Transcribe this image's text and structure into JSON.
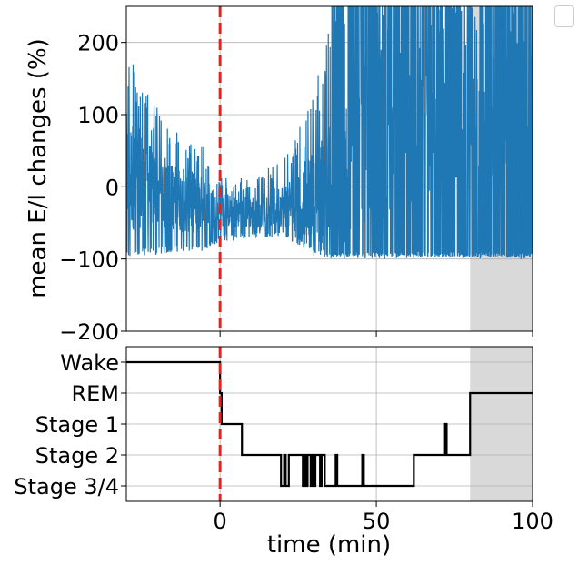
{
  "chart_data": [
    {
      "type": "line",
      "panel": "top",
      "ylabel": "mean E/I changes (%)",
      "xlim": [
        -30,
        100
      ],
      "ylim": [
        -200,
        250
      ],
      "yticks": [
        -200,
        -100,
        0,
        100,
        200
      ],
      "ytick_labels": [
        "−200",
        "−100",
        "0",
        "100",
        "200"
      ],
      "grid": true,
      "color": "#1f77b4",
      "shaded_region": {
        "x_from": 80,
        "x_to": 100,
        "color": "#d9d9d9"
      },
      "vline": {
        "x": 0,
        "color": "#e8221c",
        "style": "dashed"
      },
      "series": [
        {
          "x": [
            -30,
            -25,
            -20,
            -15,
            -10,
            -5,
            0,
            5,
            10,
            15,
            20,
            25,
            30,
            35,
            40,
            45,
            50,
            55,
            60,
            65,
            70,
            75,
            80,
            85,
            90,
            95,
            100
          ],
          "y_mean": [
            20,
            10,
            -5,
            -15,
            -20,
            -25,
            -30,
            -35,
            -35,
            -30,
            -25,
            -20,
            -10,
            0,
            20,
            40,
            50,
            50,
            60,
            60,
            70,
            80,
            100,
            100,
            100,
            100,
            100
          ],
          "y_low": [
            -100,
            -95,
            -95,
            -90,
            -90,
            -90,
            -75,
            -75,
            -70,
            -70,
            -70,
            -80,
            -95,
            -100,
            -100,
            -100,
            -100,
            -100,
            -100,
            -100,
            -100,
            -100,
            -100,
            -100,
            -100,
            -100,
            -100
          ],
          "y_high": [
            200,
            150,
            110,
            80,
            70,
            55,
            15,
            10,
            15,
            25,
            40,
            80,
            130,
            250,
            250,
            250,
            250,
            250,
            250,
            250,
            250,
            250,
            250,
            250,
            250,
            250,
            250
          ]
        }
      ]
    },
    {
      "type": "step",
      "panel": "bottom",
      "xlabel": "time (min)",
      "xlim": [
        -30,
        100
      ],
      "xticks": [
        0,
        50,
        100
      ],
      "xtick_labels": [
        "0",
        "50",
        "100"
      ],
      "categories": [
        "Wake",
        "REM",
        "Stage 1",
        "Stage 2",
        "Stage 3/4"
      ],
      "grid": true,
      "color": "#000000",
      "shaded_region": {
        "x_from": 80,
        "x_to": 100,
        "color": "#d9d9d9"
      },
      "vline": {
        "x": 0,
        "color": "#e8221c",
        "style": "dashed"
      },
      "steps": [
        {
          "x": -30,
          "stage": "Wake"
        },
        {
          "x": 0,
          "stage": "REM"
        },
        {
          "x": 0.5,
          "stage": "Stage 1"
        },
        {
          "x": 7,
          "stage": "Stage 2"
        },
        {
          "x": 19.5,
          "stage": "Stage 3/4"
        },
        {
          "x": 20.5,
          "stage": "Stage 2"
        },
        {
          "x": 21,
          "stage": "Stage 3/4"
        },
        {
          "x": 22,
          "stage": "Stage 2"
        },
        {
          "x": 26.5,
          "stage": "Stage 3/4"
        },
        {
          "x": 27,
          "stage": "Stage 2"
        },
        {
          "x": 27.5,
          "stage": "Stage 3/4"
        },
        {
          "x": 28,
          "stage": "Stage 2"
        },
        {
          "x": 29,
          "stage": "Stage 3/4"
        },
        {
          "x": 29.5,
          "stage": "Stage 2"
        },
        {
          "x": 30,
          "stage": "Stage 3/4"
        },
        {
          "x": 30.5,
          "stage": "Stage 2"
        },
        {
          "x": 32,
          "stage": "Stage 3/4"
        },
        {
          "x": 32.5,
          "stage": "Stage 2"
        },
        {
          "x": 33.5,
          "stage": "Stage 3/4"
        },
        {
          "x": 37,
          "stage": "Stage 2"
        },
        {
          "x": 37.5,
          "stage": "Stage 3/4"
        },
        {
          "x": 45.5,
          "stage": "Stage 2"
        },
        {
          "x": 46,
          "stage": "Stage 3/4"
        },
        {
          "x": 62,
          "stage": "Stage 2"
        },
        {
          "x": 72,
          "stage": "Stage 1"
        },
        {
          "x": 72.5,
          "stage": "Stage 2"
        },
        {
          "x": 80,
          "stage": "REM"
        },
        {
          "x": 100,
          "stage": "REM"
        }
      ]
    }
  ]
}
